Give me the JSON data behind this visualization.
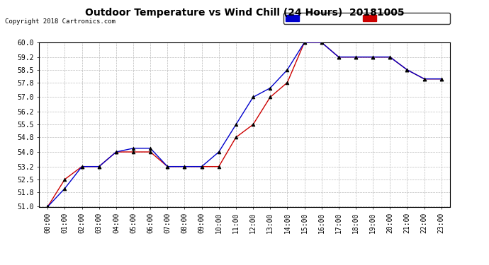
{
  "title": "Outdoor Temperature vs Wind Chill (24 Hours)  20181005",
  "copyright": "Copyright 2018 Cartronics.com",
  "hours": [
    "00:00",
    "01:00",
    "02:00",
    "03:00",
    "04:00",
    "05:00",
    "06:00",
    "07:00",
    "08:00",
    "09:00",
    "10:00",
    "11:00",
    "12:00",
    "13:00",
    "14:00",
    "15:00",
    "16:00",
    "17:00",
    "18:00",
    "19:00",
    "20:00",
    "21:00",
    "22:00",
    "23:00"
  ],
  "temperature": [
    51.0,
    52.5,
    53.2,
    53.2,
    54.0,
    54.0,
    54.0,
    53.2,
    53.2,
    53.2,
    53.2,
    54.8,
    55.5,
    57.0,
    57.8,
    60.0,
    60.0,
    59.2,
    59.2,
    59.2,
    59.2,
    58.5,
    58.0,
    58.0
  ],
  "wind_chill": [
    51.0,
    52.0,
    53.2,
    53.2,
    54.0,
    54.2,
    54.2,
    53.2,
    53.2,
    53.2,
    54.0,
    55.5,
    57.0,
    57.5,
    58.5,
    60.0,
    60.0,
    59.2,
    59.2,
    59.2,
    59.2,
    58.5,
    58.0,
    58.0
  ],
  "temp_color": "#cc0000",
  "wind_color": "#0000cc",
  "ylim": [
    51.0,
    60.0
  ],
  "yticks": [
    51.0,
    51.8,
    52.5,
    53.2,
    54.0,
    54.8,
    55.5,
    56.2,
    57.0,
    57.8,
    58.5,
    59.2,
    60.0
  ],
  "background": "#ffffff",
  "grid_color": "#bbbbbb"
}
